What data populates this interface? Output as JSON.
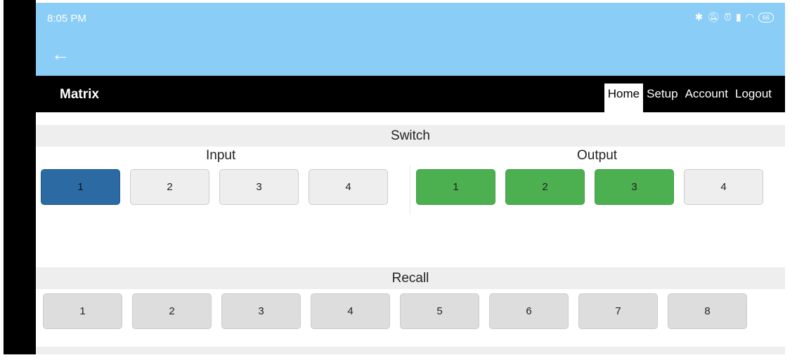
{
  "statusbar": {
    "time": "8:05 PM",
    "icons": [
      "bluetooth-icon",
      "bell-off-icon",
      "alarm-icon",
      "signal-icon",
      "wifi-icon"
    ],
    "battery": "66"
  },
  "appbar": {
    "back_icon": "arrow-left-icon"
  },
  "nav": {
    "brand": "Matrix",
    "items": [
      {
        "label": "Home",
        "active": true
      },
      {
        "label": "Setup"
      },
      {
        "label": "Account"
      },
      {
        "label": "Logout"
      }
    ]
  },
  "switch": {
    "title": "Switch",
    "input_label": "Input",
    "output_label": "Output",
    "inputs": [
      {
        "label": "1",
        "selected": true
      },
      {
        "label": "2"
      },
      {
        "label": "3"
      },
      {
        "label": "4"
      }
    ],
    "outputs": [
      {
        "label": "1",
        "on": true
      },
      {
        "label": "2",
        "on": true
      },
      {
        "label": "3",
        "on": true
      },
      {
        "label": "4",
        "on": false
      }
    ]
  },
  "recall": {
    "title": "Recall",
    "buttons": [
      "1",
      "2",
      "3",
      "4",
      "5",
      "6",
      "7",
      "8"
    ]
  },
  "colors": {
    "appbar": "#8acdf7",
    "selected_input": "#2c6aa3",
    "active_output": "#4caf50"
  }
}
